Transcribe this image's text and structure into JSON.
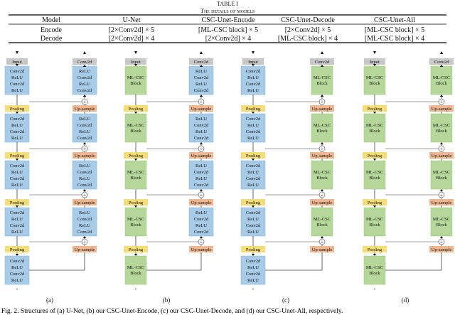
{
  "table": {
    "caption": "TABLE I",
    "title": "The details of models",
    "headers": [
      "Model",
      "U-Net",
      "CSC-Unet-Encode",
      "CSC-Unet-Decode",
      "CSC-Unet-All"
    ],
    "rows": [
      [
        "Encode",
        "[2×Conv2d] × 5",
        "[ML-CSC block] × 5",
        "[2×Conv2d] × 5",
        "[ML-CSC block] × 5"
      ],
      [
        "Decode",
        "[2×Conv2d] × 4",
        "[2×Conv2d] × 4",
        "[ML-CSC block] × 4",
        "[ML-CSC block] × 4"
      ]
    ]
  },
  "labels": {
    "input": "Input",
    "conv2d": "Conv2d",
    "pooling": "Pooling",
    "upsample": "Up-sample",
    "plus": "+",
    "conv_block": [
      "Conv2d",
      "ReLU",
      "Conv2d",
      "ReLU"
    ],
    "decoder_block": [
      "ReLU",
      "Conv2d",
      "ReLU",
      "Conv2d"
    ],
    "ml_block": [
      "ML-CSC",
      "Block"
    ]
  },
  "panels": [
    {
      "id": "a",
      "label": "(a)",
      "encoder": "conv",
      "decoder": "conv"
    },
    {
      "id": "b",
      "label": "(b)",
      "encoder": "ml",
      "decoder": "conv"
    },
    {
      "id": "c",
      "label": "(c)",
      "encoder": "conv",
      "decoder": "ml"
    },
    {
      "id": "d",
      "label": "(d)",
      "encoder": "ml",
      "decoder": "ml"
    }
  ],
  "figure_caption": "Fig. 2.  Structures of (a) U-Net, (b) our CSC-Unet-Encode, (c) our CSC-Unet-Decode, and (d) our CSC-Unet-All, respectively.",
  "colors": {
    "conv_block": "#a8cce8",
    "ml_block": "#b5d89a",
    "input_box": "#c8c8c8",
    "pooling": "#f7dc7a",
    "upsample": "#efb791",
    "line": "#444444"
  }
}
